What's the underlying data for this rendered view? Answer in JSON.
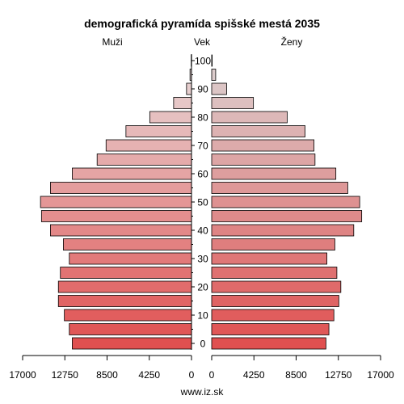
{
  "chart_data": {
    "type": "bar",
    "title": "demografická pyramída spišské mestá 2035",
    "left_label": "Muži",
    "center_label": "Vek",
    "right_label": "Ženy",
    "source": "www.iz.sk",
    "x_ticks": [
      "17000",
      "12750",
      "8500",
      "4250",
      "0",
      "0",
      "4250",
      "8500",
      "12750",
      "17000"
    ],
    "x_max": 17000,
    "age_ticks": [
      "0",
      "10",
      "20",
      "30",
      "40",
      "50",
      "60",
      "70",
      "80",
      "90",
      "100"
    ],
    "age_groups": [
      "0-4",
      "5-9",
      "10-14",
      "15-19",
      "20-24",
      "25-29",
      "30-34",
      "35-39",
      "40-44",
      "45-49",
      "50-54",
      "55-59",
      "60-64",
      "65-69",
      "70-74",
      "75-79",
      "80-84",
      "85-89",
      "90-94",
      "95-99",
      "100+"
    ],
    "series": [
      {
        "name": "Muži",
        "values": [
          12000,
          12300,
          12800,
          13400,
          13400,
          13200,
          12300,
          12900,
          14200,
          15100,
          15200,
          14200,
          12000,
          9500,
          8600,
          6600,
          4200,
          1800,
          500,
          150,
          30
        ]
      },
      {
        "name": "Ženy",
        "values": [
          11500,
          11800,
          12300,
          12800,
          13000,
          12600,
          11600,
          12400,
          14300,
          15100,
          14900,
          13700,
          12500,
          10400,
          10300,
          9400,
          7600,
          4200,
          1500,
          400,
          50
        ]
      }
    ]
  }
}
